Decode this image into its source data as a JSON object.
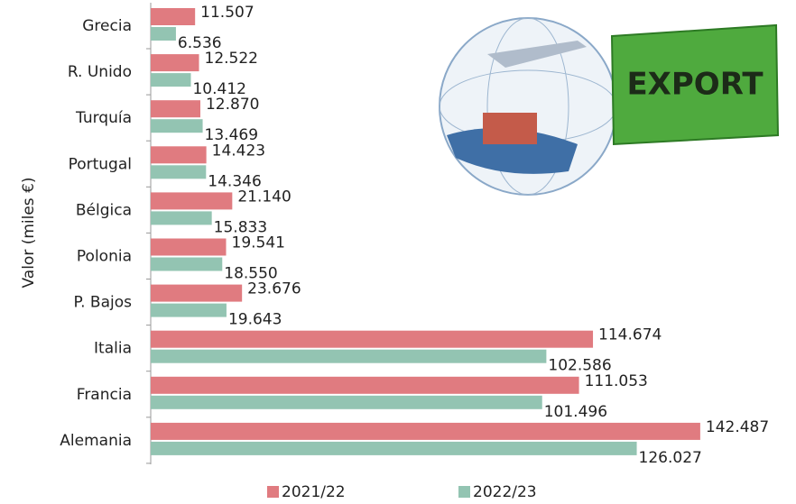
{
  "chart_data": {
    "type": "hbar",
    "y_label": "Valor (miles €)",
    "annotations": [
      "EXPORT"
    ],
    "categories": [
      "Grecia",
      "R. Unido",
      "Turquía",
      "Portugal",
      "Bélgica",
      "Polonia",
      "P. Bajos",
      "Italia",
      "Francia",
      "Alemania"
    ],
    "series": [
      {
        "name": "2021/22",
        "color": "#e07b80",
        "values": [
          11507,
          12522,
          12870,
          14423,
          21140,
          19541,
          23676,
          114674,
          111053,
          142487
        ],
        "value_labels": [
          "11.507",
          "12.522",
          "12.870",
          "14.423",
          "21.140",
          "19.541",
          "23.676",
          "114.674",
          "111.053",
          "142.487"
        ]
      },
      {
        "name": "2022/23",
        "color": "#93c4b2",
        "values": [
          6536,
          10412,
          13469,
          14346,
          15833,
          18550,
          19643,
          102586,
          101496,
          126027
        ],
        "value_labels": [
          "6.536",
          "10.412",
          "13.469",
          "14.346",
          "15.833",
          "18.550",
          "19.643",
          "102.586",
          "101.496",
          "126.027"
        ]
      }
    ],
    "xlim": [
      0,
      150000
    ]
  }
}
